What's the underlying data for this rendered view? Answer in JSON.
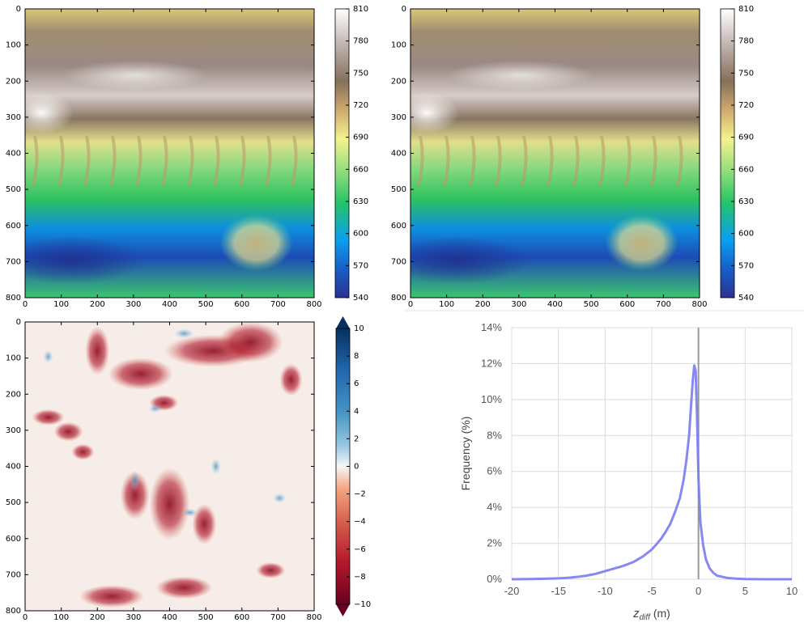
{
  "chart_data": [
    {
      "type": "heatmap",
      "panel": "top-left",
      "colormap": "terrain",
      "x_ticks": [
        "0",
        "100",
        "200",
        "300",
        "400",
        "500",
        "600",
        "700",
        "800"
      ],
      "y_ticks": [
        "0",
        "100",
        "200",
        "300",
        "400",
        "500",
        "600",
        "700",
        "800"
      ],
      "xlim": [
        0,
        800
      ],
      "ylim": [
        800,
        0
      ],
      "colorbar_ticks": [
        "540",
        "570",
        "600",
        "630",
        "660",
        "690",
        "720",
        "750",
        "780",
        "810"
      ],
      "colorbar_range": [
        540,
        810
      ]
    },
    {
      "type": "heatmap",
      "panel": "top-right",
      "colormap": "terrain",
      "x_ticks": [
        "0",
        "100",
        "200",
        "300",
        "400",
        "500",
        "600",
        "700",
        "800"
      ],
      "y_ticks": [
        "0",
        "100",
        "200",
        "300",
        "400",
        "500",
        "600",
        "700",
        "800"
      ],
      "xlim": [
        0,
        800
      ],
      "ylim": [
        800,
        0
      ],
      "colorbar_ticks": [
        "540",
        "570",
        "600",
        "630",
        "660",
        "690",
        "720",
        "750",
        "780",
        "810"
      ],
      "colorbar_range": [
        540,
        810
      ]
    },
    {
      "type": "heatmap",
      "panel": "bottom-left",
      "colormap": "RdBu",
      "x_ticks": [
        "0",
        "100",
        "200",
        "300",
        "400",
        "500",
        "600",
        "700",
        "800"
      ],
      "y_ticks": [
        "0",
        "100",
        "200",
        "300",
        "400",
        "500",
        "600",
        "700",
        "800"
      ],
      "xlim": [
        0,
        800
      ],
      "ylim": [
        800,
        0
      ],
      "colorbar_ticks": [
        "−10",
        "−8",
        "−6",
        "−4",
        "−2",
        "0",
        "2",
        "4",
        "6",
        "8",
        "10"
      ],
      "colorbar_range": [
        -10,
        10
      ],
      "colorbar_extend": "both"
    },
    {
      "type": "line",
      "panel": "bottom-right",
      "xlabel_main": "z",
      "xlabel_sub": "diff",
      "xlabel_unit": " (m)",
      "ylabel": "Frequency (%)",
      "x_ticks": [
        "-20",
        "-15",
        "-10",
        "-5",
        "0",
        "5",
        "10"
      ],
      "y_ticks": [
        "0%",
        "2%",
        "4%",
        "6%",
        "8%",
        "10%",
        "12%",
        "14%"
      ],
      "xlim": [
        -20,
        10
      ],
      "ylim": [
        0,
        14
      ],
      "grid": true,
      "vline_x": 0,
      "line_color": "#7b7bf0",
      "series": [
        {
          "x": [
            -20,
            -18,
            -16,
            -15,
            -14,
            -13,
            -12,
            -11,
            -10,
            -9,
            -8,
            -7,
            -6,
            -5.5,
            -5,
            -4.5,
            -4,
            -3.5,
            -3,
            -2.5,
            -2,
            -1.6,
            -1.3,
            -1.0,
            -0.8,
            -0.6,
            -0.45,
            -0.3,
            -0.15,
            0,
            0.2,
            0.5,
            0.8,
            1.2,
            1.6,
            2,
            3,
            4,
            5,
            7,
            10
          ],
          "y": [
            0,
            0.01,
            0.03,
            0.05,
            0.08,
            0.13,
            0.2,
            0.3,
            0.45,
            0.6,
            0.75,
            0.95,
            1.25,
            1.45,
            1.65,
            1.95,
            2.25,
            2.65,
            3.1,
            3.75,
            4.5,
            5.5,
            6.6,
            8.0,
            9.6,
            11.1,
            11.9,
            11.6,
            9.0,
            5.6,
            3.2,
            1.9,
            1.1,
            0.6,
            0.35,
            0.2,
            0.08,
            0.03,
            0.01,
            0,
            0
          ]
        }
      ]
    }
  ]
}
